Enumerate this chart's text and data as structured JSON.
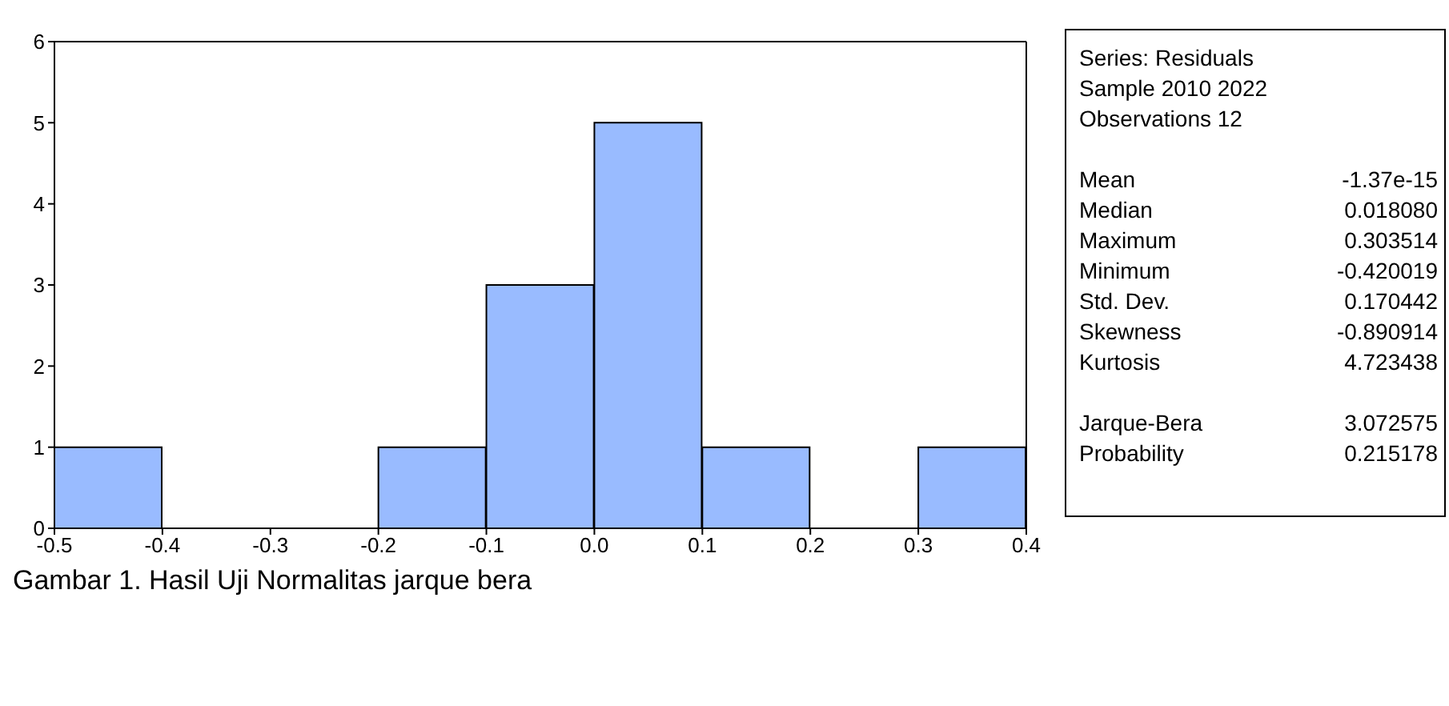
{
  "chart_data": [
    {
      "type": "histogram",
      "bins": [
        -0.5,
        -0.4,
        -0.3,
        -0.2,
        -0.1,
        0.0,
        0.1,
        0.2,
        0.3,
        0.4
      ],
      "values": [
        1,
        0,
        0,
        1,
        3,
        5,
        1,
        0,
        1
      ],
      "color": "#99bbff",
      "xlim": [
        -0.5,
        0.4
      ],
      "xticks": [
        -0.5,
        -0.4,
        -0.3,
        -0.2,
        -0.1,
        {
          "value": 0,
          "label": "0.0"
        },
        0.1,
        0.2,
        0.3,
        0.4
      ],
      "ylim": [
        0,
        6
      ],
      "yticks": [
        0,
        1,
        2,
        3,
        4,
        5,
        6
      ],
      "grid": false,
      "annotations": [
        "Gambar 1. Hasil Uji Normalitas jarque bera"
      ]
    },
    {
      "type": "other",
      "annotations": [
        "Series: Residuals",
        "Sample 2010 2022",
        "Observations 12",
        "Mean",
        "-1.37e-15",
        "Median",
        "0.018080",
        "Maximum",
        "0.303514",
        "Minimum",
        "-0.420019",
        "Std. Dev.",
        "0.170442",
        "Skewness",
        "-0.890914",
        "Kurtosis",
        "4.723438",
        "Jarque-Bera",
        "3.072575",
        "Probability",
        "0.215178"
      ]
    }
  ]
}
